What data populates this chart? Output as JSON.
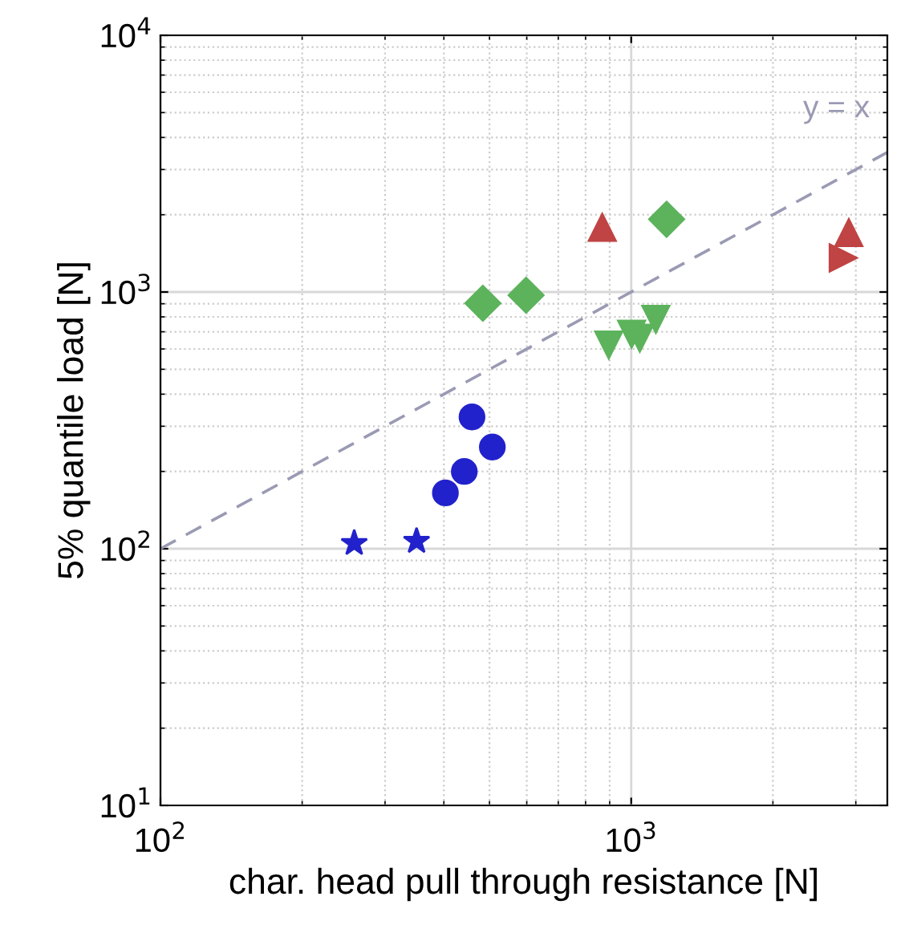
{
  "chart_data": {
    "type": "scatter",
    "xlabel": "char. head pull through resistance [N]",
    "ylabel": "5% quantile load [N]",
    "log": "xy",
    "xlim": [
      100,
      3500
    ],
    "ylim": [
      10,
      10000
    ],
    "xticks": [
      {
        "value": 100,
        "label": "10$^{2}$"
      },
      {
        "value": 1000,
        "label": "10$^{3}$"
      }
    ],
    "yticks": [
      {
        "value": 10,
        "label": "10$^{1}$"
      },
      {
        "value": 100,
        "label": "10$^{2}$"
      },
      {
        "value": 1000,
        "label": "10$^{3}$"
      },
      {
        "value": 10000,
        "label": "10$^{4}$"
      }
    ],
    "grid": true,
    "legend": false,
    "series": [
      {
        "type": "line",
        "color": "#9a9ab4",
        "line_style": "dashed",
        "marker": "none",
        "x": [
          100,
          3500
        ],
        "values": [
          100,
          3500
        ]
      },
      {
        "color": "#2222cc",
        "marker": "star",
        "x": [
          258,
          350
        ],
        "values": [
          105,
          107
        ]
      },
      {
        "color": "#2222cc",
        "marker": "circle",
        "x": [
          403,
          442,
          459,
          507
        ],
        "values": [
          165,
          200,
          326,
          249
        ]
      },
      {
        "color": "#5cb35c",
        "marker": "diamond",
        "x": [
          484,
          598,
          1189
        ],
        "values": [
          904,
          972,
          1920
        ]
      },
      {
        "color": "#5cb35c",
        "marker": "triangle_down",
        "x": [
          896,
          1002,
          1043,
          1128
        ],
        "values": [
          622,
          685,
          661,
          783
        ]
      },
      {
        "color": "#c04444",
        "marker": "triangle",
        "x": [
          868,
          2899
        ],
        "values": [
          1785,
          1703
        ]
      },
      {
        "color": "#c04444",
        "marker": "triangle_right",
        "x": [
          2820
        ],
        "values": [
          1358
        ]
      }
    ],
    "annotations": [
      "y = x"
    ]
  }
}
